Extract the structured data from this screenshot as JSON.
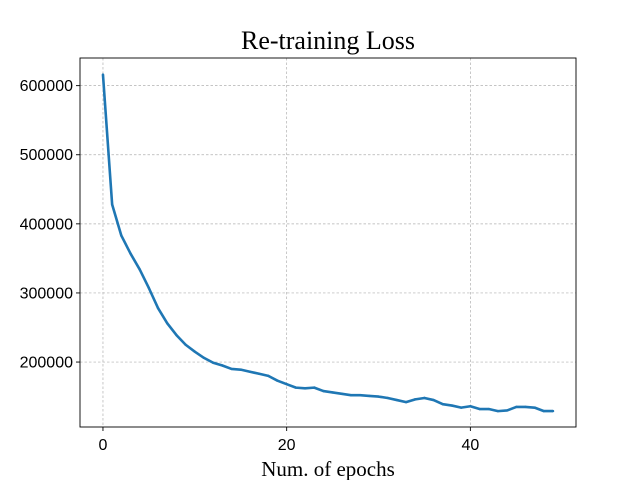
{
  "chart_data": {
    "type": "line",
    "title": "Re-training Loss",
    "xlabel": "Num. of epochs",
    "ylabel": "",
    "xlim": [
      -2.5,
      51.5
    ],
    "ylim": [
      106000,
      640000
    ],
    "x_ticks": [
      0,
      20,
      40
    ],
    "y_ticks": [
      200000,
      300000,
      400000,
      500000,
      600000
    ],
    "x_tick_labels": [
      "0",
      "20",
      "40"
    ],
    "y_tick_labels": [
      "200000",
      "300000",
      "400000",
      "500000",
      "600000"
    ],
    "grid": true,
    "legend": "none",
    "colors": {
      "line": "#1f77b4",
      "grid": "#b0b0b0",
      "axis": "#000000"
    },
    "series": [
      {
        "x": [
          0,
          1,
          2,
          3,
          4,
          5,
          6,
          7,
          8,
          9,
          10,
          11,
          12,
          13,
          14,
          15,
          16,
          17,
          18,
          19,
          20,
          21,
          22,
          23,
          24,
          25,
          26,
          27,
          28,
          29,
          30,
          31,
          32,
          33,
          34,
          35,
          36,
          37,
          38,
          39,
          40,
          41,
          42,
          43,
          44,
          45,
          46,
          47,
          48,
          49
        ],
        "values": [
          616000,
          428000,
          383000,
          357000,
          334000,
          307000,
          278000,
          256000,
          239000,
          225000,
          215000,
          206000,
          199000,
          195000,
          190000,
          189000,
          186000,
          183000,
          180000,
          173000,
          168000,
          163000,
          162000,
          163000,
          158000,
          156000,
          154000,
          152000,
          152000,
          151000,
          150000,
          148000,
          145000,
          142000,
          146000,
          148000,
          145000,
          139000,
          137000,
          134000,
          136000,
          132000,
          132000,
          129000,
          130000,
          135000,
          135000,
          134000,
          129000,
          129000
        ]
      }
    ]
  }
}
